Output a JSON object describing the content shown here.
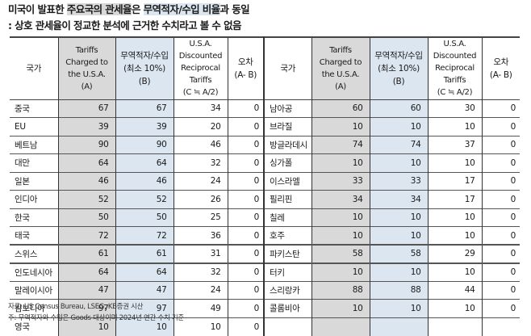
{
  "title": {
    "line1_pre": "미국이 발표한 ",
    "line1_hl_gray": "주요국의 관세율",
    "line1_mid": "은 ",
    "line1_hl_blue": "무역적자/수입 비율",
    "line1_post": "과 동일",
    "line2": ": 상호 관세율이 정교한 분석에 근거한 수치라고 볼 수 없음"
  },
  "colors": {
    "tariff_col_bg": "#d9d9d9",
    "deficit_col_bg": "#dce6f1"
  },
  "table": {
    "headers": {
      "country": "국가",
      "a_l1": "Tariffs",
      "a_l2": "Charged to",
      "a_l3": "the U.S.A.",
      "a_l4": "(A)",
      "b_l1": "무역적자/수입",
      "b_l2": "(최소 10%)",
      "b_l3": "(B)",
      "c_l1": "U.S.A.",
      "c_l2": "Discounted",
      "c_l3": "Reciprocal",
      "c_l4": "Tariffs",
      "c_l5": "(C ≒ A/2)",
      "d_l1": "오차",
      "d_l2": "(A- B)"
    },
    "left": [
      {
        "country": "중국",
        "a": "67",
        "b": "67",
        "c": "34",
        "d": "0"
      },
      {
        "country": "EU",
        "a": "39",
        "b": "39",
        "c": "20",
        "d": "0"
      },
      {
        "country": "베트남",
        "a": "90",
        "b": "90",
        "c": "46",
        "d": "0"
      },
      {
        "country": "대만",
        "a": "64",
        "b": "64",
        "c": "32",
        "d": "0"
      },
      {
        "country": "일본",
        "a": "46",
        "b": "46",
        "c": "24",
        "d": "0"
      },
      {
        "country": "인디아",
        "a": "52",
        "b": "52",
        "c": "26",
        "d": "0"
      },
      {
        "country": "한국",
        "a": "50",
        "b": "50",
        "c": "25",
        "d": "0"
      },
      {
        "country": "태국",
        "a": "72",
        "b": "72",
        "c": "36",
        "d": "0"
      },
      {
        "country": "스위스",
        "a": "61",
        "b": "61",
        "c": "31",
        "d": "0"
      },
      {
        "country": "인도네시아",
        "a": "64",
        "b": "64",
        "c": "32",
        "d": "0"
      },
      {
        "country": "말레이시아",
        "a": "47",
        "b": "47",
        "c": "24",
        "d": "0"
      },
      {
        "country": "캄보디아",
        "a": "97",
        "b": "97",
        "c": "49",
        "d": "0"
      },
      {
        "country": "영국",
        "a": "10",
        "b": "10",
        "c": "10",
        "d": "0"
      }
    ],
    "right": [
      {
        "country": "남아공",
        "a": "60",
        "b": "60",
        "c": "30",
        "d": "0"
      },
      {
        "country": "브라질",
        "a": "10",
        "b": "10",
        "c": "10",
        "d": "0"
      },
      {
        "country": "방글라데시",
        "a": "74",
        "b": "74",
        "c": "37",
        "d": "0"
      },
      {
        "country": "싱가폴",
        "a": "10",
        "b": "10",
        "c": "10",
        "d": "0"
      },
      {
        "country": "이스라엘",
        "a": "33",
        "b": "33",
        "c": "17",
        "d": "0"
      },
      {
        "country": "필리핀",
        "a": "34",
        "b": "34",
        "c": "17",
        "d": "0"
      },
      {
        "country": "칠레",
        "a": "10",
        "b": "10",
        "c": "10",
        "d": "0"
      },
      {
        "country": "호주",
        "a": "10",
        "b": "10",
        "c": "10",
        "d": "0"
      },
      {
        "country": "파키스탄",
        "a": "58",
        "b": "58",
        "c": "29",
        "d": "0"
      },
      {
        "country": "터키",
        "a": "10",
        "b": "10",
        "c": "10",
        "d": "0"
      },
      {
        "country": "스리랑카",
        "a": "88",
        "b": "88",
        "c": "44",
        "d": "0"
      },
      {
        "country": "콜롬비아",
        "a": "10",
        "b": "10",
        "c": "10",
        "d": "0"
      },
      {
        "country": "",
        "a": "",
        "b": "",
        "c": "",
        "d": ""
      }
    ]
  },
  "notes": {
    "source": "자료: US Census Bureau, LSEG, KB증권 시산",
    "footnote": "주: 무역적자와 수입은 Goods 대상이며 2024년 연간 수치 기준"
  }
}
